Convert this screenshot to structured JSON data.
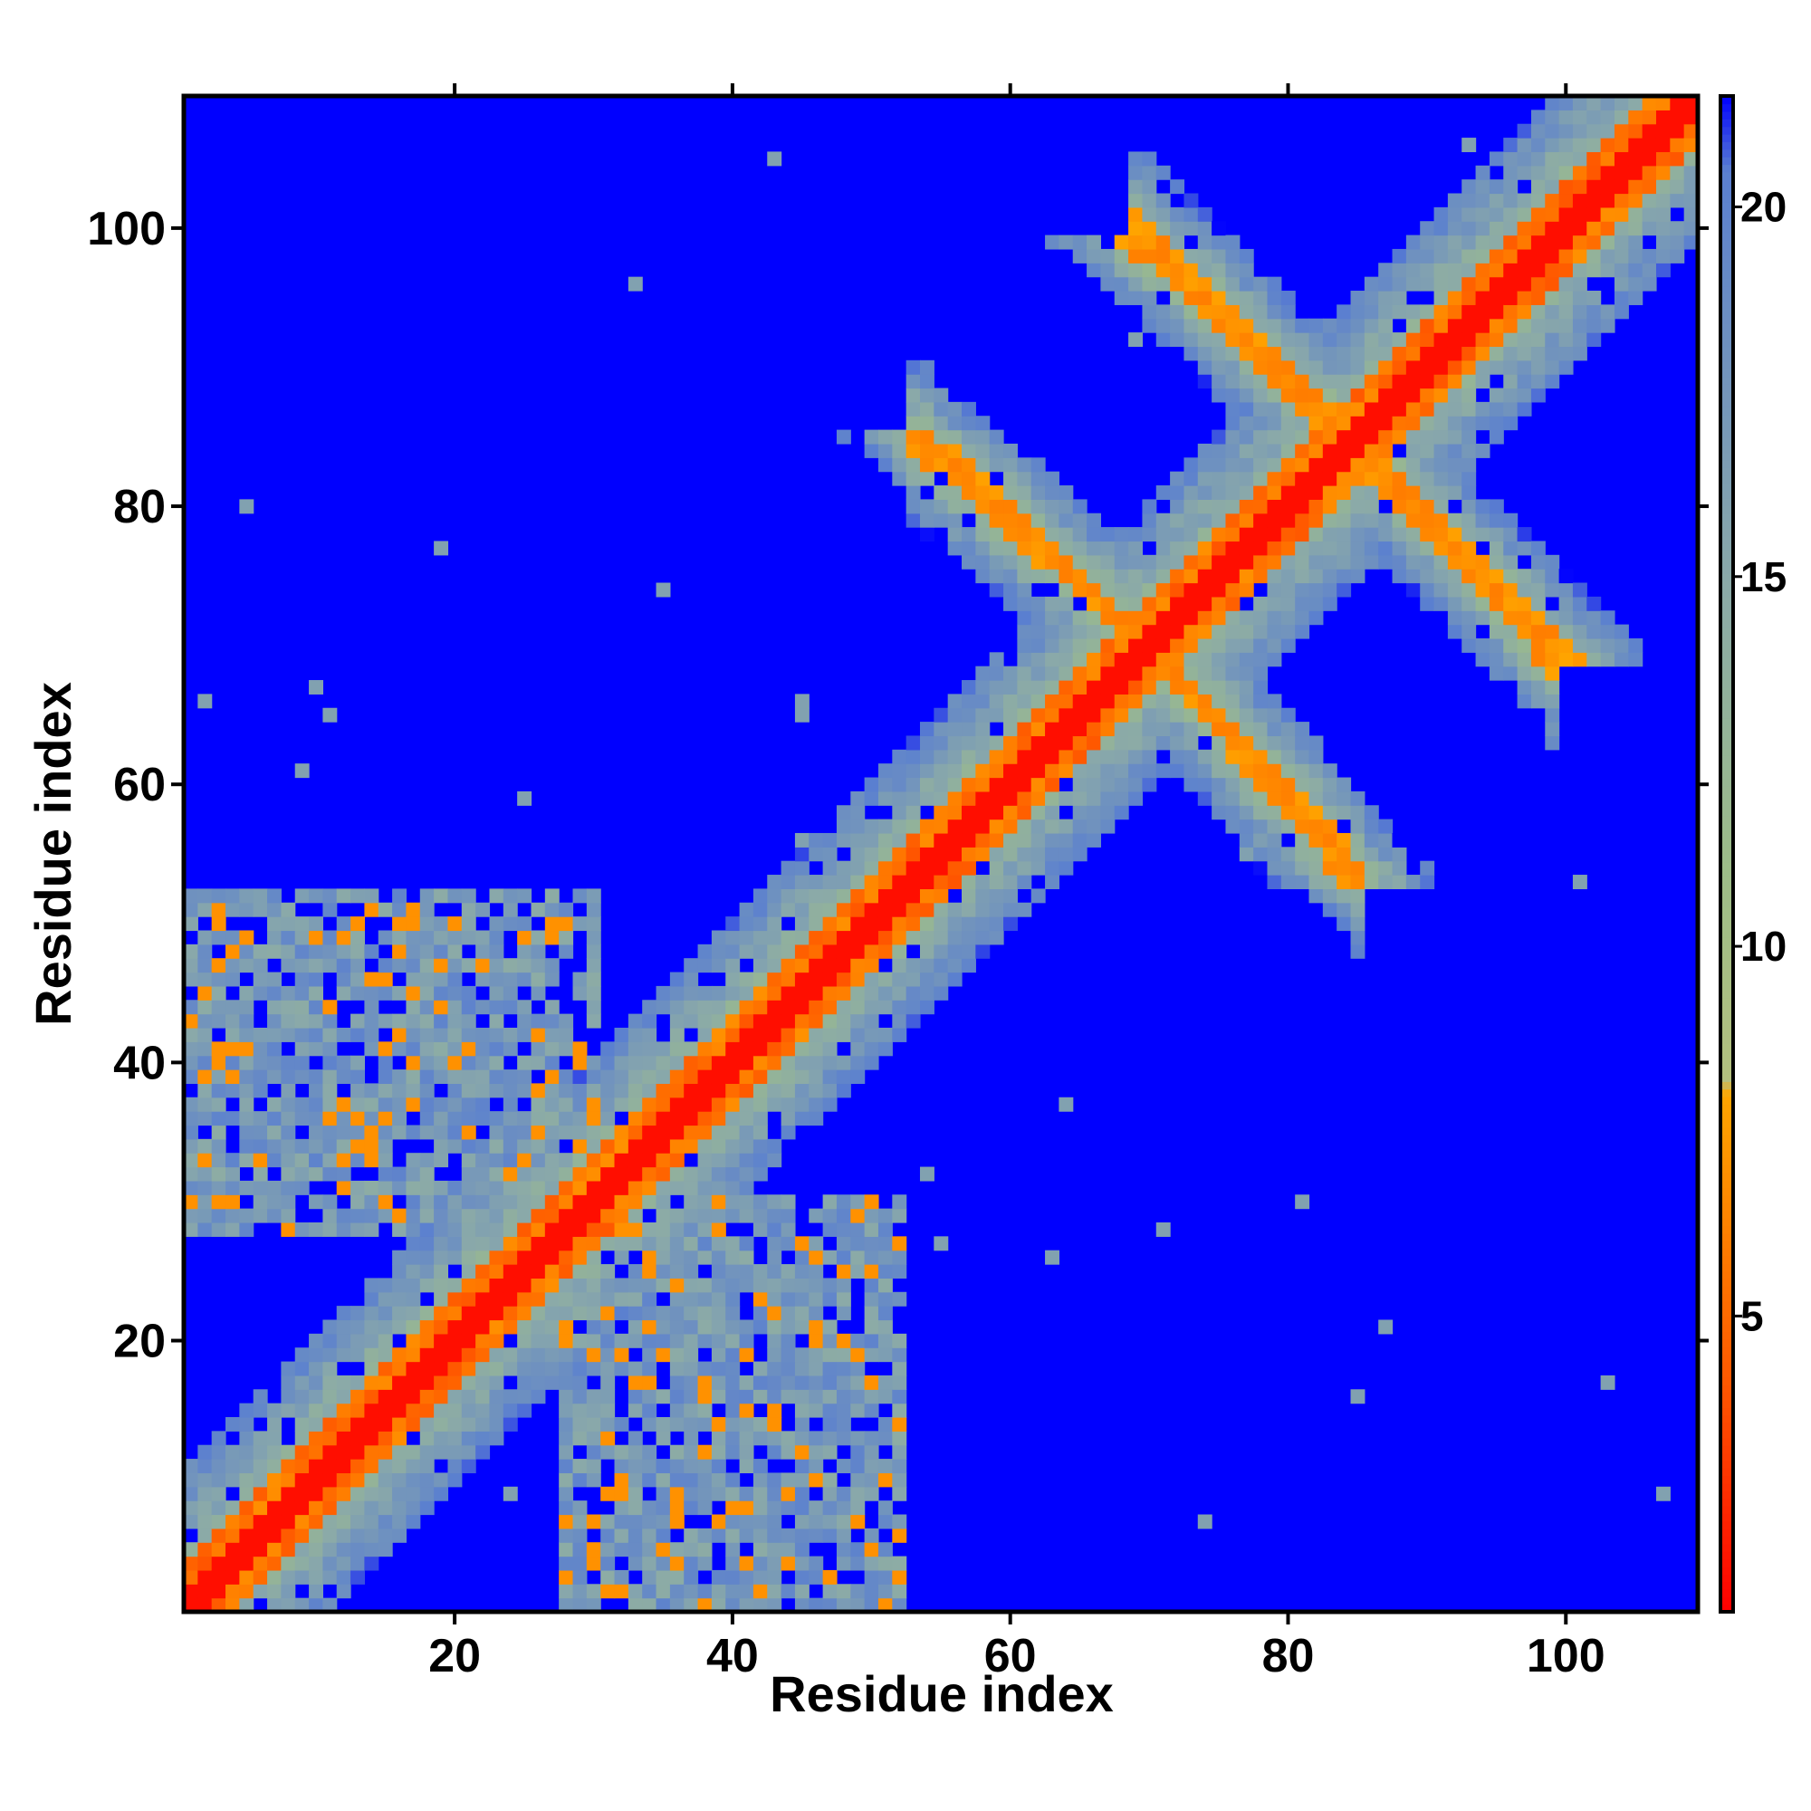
{
  "chart_data": {
    "type": "heatmap",
    "title": "",
    "xlabel": "Residue index",
    "ylabel": "Residue index",
    "n_residues": 109,
    "xlim": [
      0.5,
      109.5
    ],
    "ylim": [
      0.5,
      109.5
    ],
    "x_ticks": [
      20,
      40,
      60,
      80,
      100
    ],
    "y_ticks": [
      20,
      40,
      60,
      80,
      100
    ],
    "x_tick_labels": [
      "20",
      "40",
      "60",
      "80",
      "100"
    ],
    "y_tick_labels": [
      "20",
      "40",
      "60",
      "80",
      "100"
    ],
    "colorbar": {
      "range": [
        1,
        21.5
      ],
      "ticks": [
        5,
        10,
        15,
        20
      ],
      "tick_labels": [
        "5",
        "10",
        "15",
        "20"
      ],
      "stops": [
        {
          "value": 1,
          "color": "#ff0000"
        },
        {
          "value": 4,
          "color": "#ff5500"
        },
        {
          "value": 8,
          "color": "#ffa500"
        },
        {
          "value": 8.2,
          "color": "#b3c07f"
        },
        {
          "value": 11,
          "color": "#9dbd88"
        },
        {
          "value": 15,
          "color": "#8aa9a9"
        },
        {
          "value": 20.5,
          "color": "#5a7fd0"
        },
        {
          "value": 21.5,
          "color": "#0000ff"
        }
      ]
    },
    "cutoff": 21.5,
    "above_cutoff_color": "#0000ff",
    "description_features": {
      "diagonal_band": {
        "core_halfwidth": 1.2,
        "band_halfwidth": 10
      },
      "cross_strands": [
        {
          "i_start": 54,
          "i_end": 70,
          "j_start": 84,
          "j_end": 70,
          "value": 6
        },
        {
          "i_start": 70,
          "i_end": 84,
          "j_start": 99,
          "j_end": 85,
          "value": 6
        },
        {
          "i_start": 85,
          "i_end": 98,
          "j_start": 85,
          "j_end": 70,
          "value": 6
        },
        {
          "i_start": 70,
          "i_end": 84,
          "j_start": 70,
          "j_end": 55,
          "value": 6
        }
      ],
      "contact_patches": [
        {
          "i_range": [
            1,
            30
          ],
          "j_range": [
            28,
            52
          ],
          "value": 13
        },
        {
          "i_range": [
            28,
            52
          ],
          "j_range": [
            1,
            30
          ],
          "value": 13
        }
      ]
    }
  }
}
